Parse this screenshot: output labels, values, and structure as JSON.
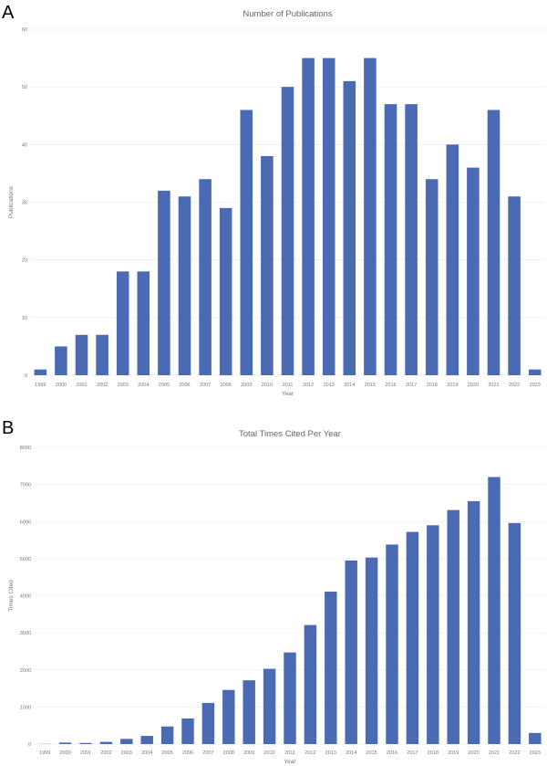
{
  "chart_data": [
    {
      "panel": "A",
      "type": "bar",
      "title": "Number of Publications",
      "xlabel": "Year",
      "ylabel": "Publications",
      "ylim": [
        0,
        60
      ],
      "yticks": [
        0,
        10,
        20,
        30,
        40,
        50,
        60
      ],
      "grid": true,
      "color": "#4a6bb3",
      "categories": [
        "1999",
        "2000",
        "2001",
        "2002",
        "2003",
        "2004",
        "2005",
        "2006",
        "2007",
        "2008",
        "2009",
        "2010",
        "2011",
        "2012",
        "2013",
        "2014",
        "2015",
        "2016",
        "2017",
        "2018",
        "2019",
        "2020",
        "2021",
        "2022",
        "2023"
      ],
      "values": [
        1,
        5,
        7,
        7,
        18,
        18,
        32,
        31,
        34,
        29,
        46,
        38,
        50,
        55,
        55,
        51,
        55,
        47,
        47,
        34,
        40,
        36,
        46,
        31,
        1
      ]
    },
    {
      "panel": "B",
      "type": "bar",
      "title": "Total Times Cited Per Year",
      "xlabel": "Year",
      "ylabel": "Times Cited",
      "ylim": [
        0,
        8000
      ],
      "yticks": [
        0,
        1000,
        2000,
        3000,
        4000,
        5000,
        6000,
        7000,
        8000
      ],
      "grid": true,
      "color": "#4a6bb3",
      "categories": [
        "1999",
        "2000",
        "2001",
        "2002",
        "2003",
        "2004",
        "2005",
        "2006",
        "2007",
        "2008",
        "2009",
        "2010",
        "2011",
        "2012",
        "2013",
        "2014",
        "2015",
        "2016",
        "2017",
        "2018",
        "2019",
        "2020",
        "2021",
        "2022",
        "2023"
      ],
      "values": [
        5,
        40,
        30,
        60,
        140,
        220,
        475,
        690,
        1110,
        1460,
        1720,
        2030,
        2470,
        3210,
        4110,
        4950,
        5030,
        5380,
        5720,
        5900,
        6310,
        6550,
        7200,
        5960,
        300
      ]
    }
  ]
}
